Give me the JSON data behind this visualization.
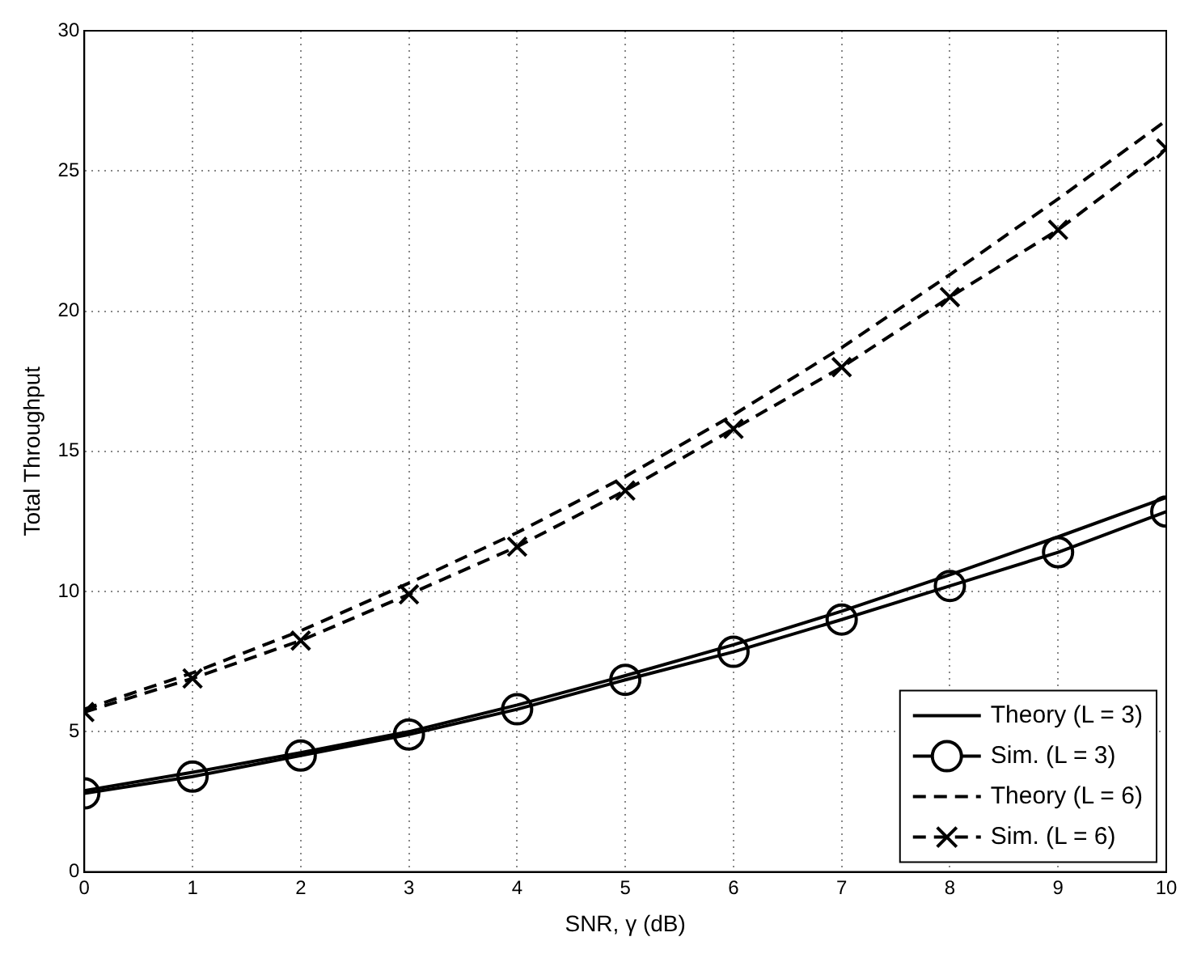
{
  "chart_data": {
    "type": "line",
    "xlabel": "SNR, γ (dB)",
    "ylabel": "Total Throughput",
    "x": [
      0,
      1,
      2,
      3,
      4,
      5,
      6,
      7,
      8,
      9,
      10
    ],
    "xlim": [
      0,
      10
    ],
    "xticks": [
      0,
      1,
      2,
      3,
      4,
      5,
      6,
      7,
      8,
      9,
      10
    ],
    "ylim": [
      0,
      30
    ],
    "yticks": [
      0,
      5,
      10,
      15,
      20,
      25,
      30
    ],
    "grid": true,
    "legend": "bottom right",
    "series": [
      {
        "name": "Theory (L = 3)",
        "color": "#000000",
        "marker": "none",
        "line_style": "solid",
        "values": [
          2.9,
          3.55,
          4.25,
          5.0,
          5.95,
          7.0,
          8.1,
          9.3,
          10.6,
          11.95,
          13.35
        ]
      },
      {
        "name": "Sim. (L = 3)",
        "color": "#000000",
        "marker": "circle",
        "line_style": "solid",
        "values": [
          2.8,
          3.4,
          4.15,
          4.9,
          5.8,
          6.85,
          7.85,
          9.0,
          10.2,
          11.4,
          12.85
        ]
      },
      {
        "name": "Theory (L = 6)",
        "color": "#000000",
        "marker": "none",
        "line_style": "dashed",
        "values": [
          5.8,
          7.1,
          8.6,
          10.3,
          12.1,
          14.1,
          16.3,
          18.7,
          21.3,
          24.0,
          26.8
        ]
      },
      {
        "name": "Sim. (L = 6)",
        "color": "#000000",
        "marker": "cross",
        "line_style": "dashed",
        "values": [
          5.7,
          6.9,
          8.25,
          9.9,
          11.6,
          13.6,
          15.8,
          18.0,
          20.5,
          22.9,
          25.8
        ]
      }
    ]
  }
}
